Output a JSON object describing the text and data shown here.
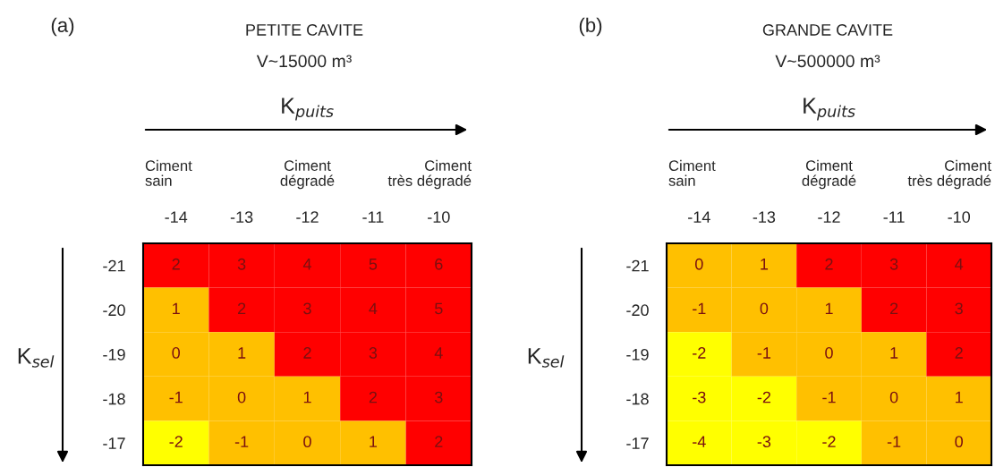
{
  "chart_data": [
    {
      "type": "heatmap",
      "title": "PETITE CAVITE",
      "subtitle": "V~15000 m³",
      "xlabel": "K$_{puits}$",
      "ylabel": "K$_{sel}$",
      "annotations": [
        "(a)",
        "Ciment sain",
        "Ciment dégradé",
        "Ciment très dégradé"
      ],
      "categories": [
        "-14",
        "-13",
        "-12",
        "-11",
        "-10"
      ],
      "y_categories": [
        "-21",
        "-20",
        "-19",
        "-18",
        "-17"
      ],
      "cells": [
        [
          2,
          3,
          4,
          5,
          6
        ],
        [
          1,
          2,
          3,
          4,
          5
        ],
        [
          0,
          1,
          2,
          3,
          4
        ],
        [
          -1,
          0,
          1,
          2,
          3
        ],
        [
          -2,
          -1,
          0,
          1,
          2
        ]
      ],
      "colors": [
        [
          "#ff0000",
          "#ff0000",
          "#ff0000",
          "#ff0000",
          "#ff0000"
        ],
        [
          "#ffc000",
          "#ff0000",
          "#ff0000",
          "#ff0000",
          "#ff0000"
        ],
        [
          "#ffc000",
          "#ffc000",
          "#ff0000",
          "#ff0000",
          "#ff0000"
        ],
        [
          "#ffc000",
          "#ffc000",
          "#ffc000",
          "#ff0000",
          "#ff0000"
        ],
        [
          "#ffff00",
          "#ffc000",
          "#ffc000",
          "#ffc000",
          "#ff0000"
        ]
      ],
      "data_labels": true
    },
    {
      "type": "heatmap",
      "title": "GRANDE CAVITE",
      "subtitle": "V~500000 m³",
      "xlabel": "K$_{puits}$",
      "ylabel": "K$_{sel}$",
      "annotations": [
        "(b)",
        "Ciment sain",
        "Ciment dégradé",
        "Ciment très dégradé"
      ],
      "categories": [
        "-14",
        "-13",
        "-12",
        "-11",
        "-10"
      ],
      "y_categories": [
        "-21",
        "-20",
        "-19",
        "-18",
        "-17"
      ],
      "cells": [
        [
          0,
          1,
          2,
          3,
          4
        ],
        [
          -1,
          0,
          1,
          2,
          3
        ],
        [
          -2,
          -1,
          0,
          1,
          2
        ],
        [
          -3,
          -2,
          -1,
          0,
          1
        ],
        [
          -4,
          -3,
          -2,
          -1,
          0
        ]
      ],
      "colors": [
        [
          "#ffc000",
          "#ffc000",
          "#ff0000",
          "#ff0000",
          "#ff0000"
        ],
        [
          "#ffc000",
          "#ffc000",
          "#ffc000",
          "#ff0000",
          "#ff0000"
        ],
        [
          "#ffff00",
          "#ffc000",
          "#ffc000",
          "#ffc000",
          "#ff0000"
        ],
        [
          "#ffff00",
          "#ffff00",
          "#ffc000",
          "#ffc000",
          "#ffc000"
        ],
        [
          "#ffff00",
          "#ffff00",
          "#ffff00",
          "#ffc000",
          "#ffc000"
        ]
      ],
      "data_labels": true
    }
  ]
}
